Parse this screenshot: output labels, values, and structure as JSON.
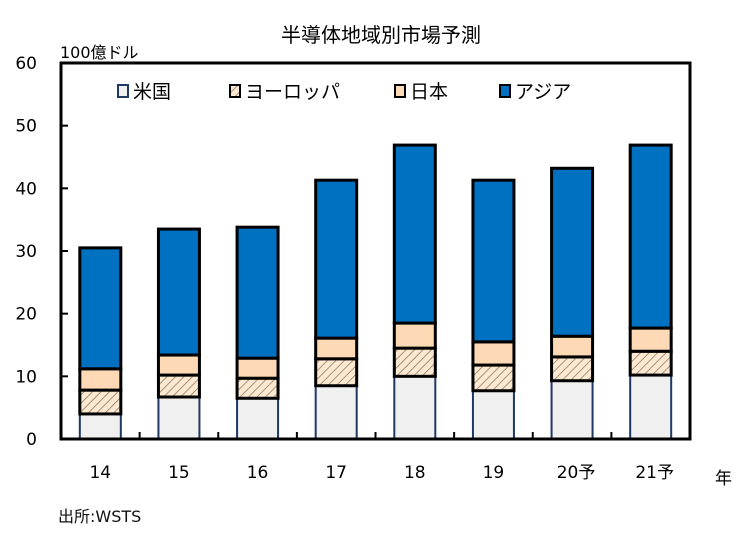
{
  "chart_data": {
    "type": "bar",
    "stacked": true,
    "title": "半導体地域別市場予測",
    "ylabel": "100億ドル",
    "xlabel": "年",
    "ylim": [
      0,
      60
    ],
    "yticks": [
      0,
      10,
      20,
      30,
      40,
      50,
      60
    ],
    "grid": false,
    "legend_position": "top-inside",
    "categories": [
      "14",
      "15",
      "16",
      "17",
      "18",
      "19",
      "20予",
      "21予"
    ],
    "series": [
      {
        "name": "米国",
        "color": "#f0f0f0",
        "edge": "#1f3864",
        "pattern": "solid",
        "values": [
          4.0,
          6.7,
          6.5,
          8.5,
          10.0,
          7.7,
          9.3,
          10.2
        ]
      },
      {
        "name": "ヨーロッパ",
        "color": "#fbe9d4",
        "edge": "#000000",
        "pattern": "hatch",
        "values": [
          3.8,
          3.5,
          3.2,
          4.3,
          4.5,
          4.1,
          3.8,
          3.8
        ]
      },
      {
        "name": "日本",
        "color": "#fdd9b5",
        "edge": "#000000",
        "pattern": "solid",
        "values": [
          3.4,
          3.2,
          3.2,
          3.3,
          4.0,
          3.7,
          3.3,
          3.7
        ]
      },
      {
        "name": "アジア",
        "color": "#0070c0",
        "edge": "#000000",
        "pattern": "solid",
        "values": [
          19.3,
          20.1,
          20.9,
          25.2,
          28.4,
          25.8,
          26.8,
          29.2
        ]
      }
    ]
  },
  "source": "出所:WSTS"
}
